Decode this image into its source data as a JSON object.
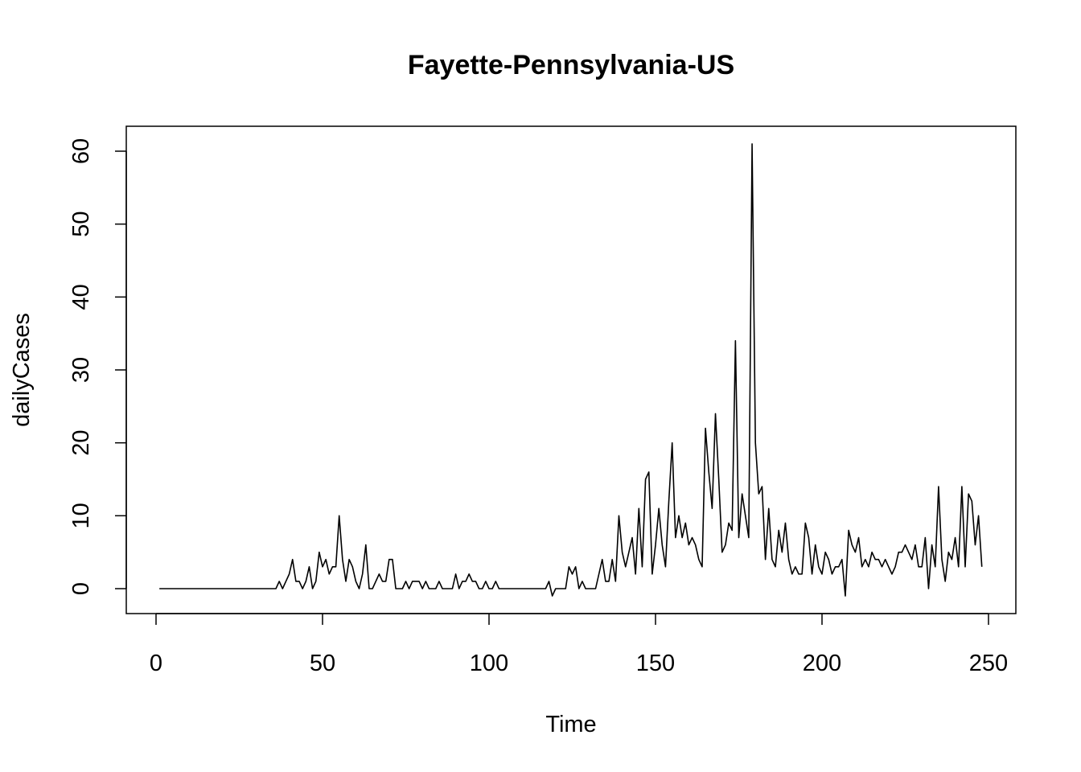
{
  "chart_data": {
    "type": "line",
    "title": "Fayette-Pennsylvania-US",
    "xlabel": "Time",
    "ylabel": "dailyCases",
    "xlim": [
      1,
      248
    ],
    "ylim": [
      -1,
      61
    ],
    "x_ticks": [
      0,
      50,
      100,
      150,
      200,
      250
    ],
    "y_ticks": [
      0,
      10,
      20,
      30,
      40,
      50,
      60
    ],
    "grid": false,
    "x_start": 1,
    "series": [
      {
        "color": "#000000",
        "values": [
          0,
          0,
          0,
          0,
          0,
          0,
          0,
          0,
          0,
          0,
          0,
          0,
          0,
          0,
          0,
          0,
          0,
          0,
          0,
          0,
          0,
          0,
          0,
          0,
          0,
          0,
          0,
          0,
          0,
          0,
          0,
          0,
          0,
          0,
          0,
          0,
          1,
          0,
          1,
          2,
          4,
          1,
          1,
          0,
          1,
          3,
          0,
          1,
          5,
          3,
          4,
          2,
          3,
          3,
          10,
          4,
          1,
          4,
          3,
          1,
          0,
          2,
          6,
          0,
          0,
          1,
          2,
          1,
          1,
          4,
          4,
          0,
          0,
          0,
          1,
          0,
          1,
          1,
          1,
          0,
          1,
          0,
          0,
          0,
          1,
          0,
          0,
          0,
          0,
          2,
          0,
          1,
          1,
          2,
          1,
          1,
          0,
          0,
          1,
          0,
          0,
          1,
          0,
          0,
          0,
          0,
          0,
          0,
          0,
          0,
          0,
          0,
          0,
          0,
          0,
          0,
          0,
          1,
          -1,
          0,
          0,
          0,
          0,
          3,
          2,
          3,
          0,
          1,
          0,
          0,
          0,
          0,
          2,
          4,
          1,
          1,
          4,
          1,
          10,
          5,
          3,
          5,
          7,
          2,
          11,
          3,
          15,
          16,
          2,
          6,
          11,
          6,
          3,
          12,
          20,
          7,
          10,
          7,
          9,
          6,
          7,
          6,
          4,
          3,
          22,
          16,
          11,
          24,
          15,
          5,
          6,
          9,
          8,
          34,
          7,
          13,
          10,
          7,
          61,
          20,
          13,
          14,
          4,
          11,
          4,
          3,
          8,
          5,
          9,
          4,
          2,
          3,
          2,
          2,
          9,
          7,
          2,
          6,
          3,
          2,
          5,
          4,
          2,
          3,
          3,
          4,
          -1,
          8,
          6,
          5,
          7,
          3,
          4,
          3,
          5,
          4,
          4,
          3,
          4,
          3,
          2,
          3,
          5,
          5,
          6,
          5,
          4,
          6,
          3,
          3,
          7,
          0,
          6,
          3,
          14,
          4,
          1,
          5,
          4,
          7,
          3,
          14,
          3,
          13,
          12,
          6,
          10,
          3
        ]
      }
    ]
  }
}
